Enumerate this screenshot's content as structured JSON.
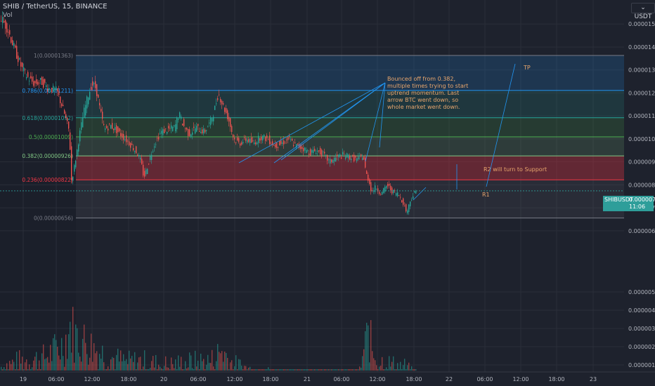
{
  "header": {
    "symbol": "SHIB / TetherUS, 15, BINANCE",
    "volume_label": "Vol",
    "currency": "USDT",
    "currency_icon": "chevron-down-icon"
  },
  "price_tag": {
    "symbol": "SHIBUSDT",
    "price": "0.00000774",
    "countdown": "11:06",
    "color": "#2e9e9a"
  },
  "colors": {
    "background": "#1e222d",
    "grid": "#2a2e39",
    "up": "#26a69a",
    "down": "#ef5350",
    "annotation": "#e8a66d",
    "drawing": "#2196f3"
  },
  "chart_data": {
    "type": "candlestick",
    "x_ticks": [
      "19",
      "06:00",
      "12:00",
      "18:00",
      "20",
      "06:00",
      "12:00",
      "18:00",
      "21",
      "06:00",
      "12:00",
      "18:00",
      "22",
      "06:00",
      "12:00",
      "18:00",
      "23"
    ],
    "price_ticks": [
      "0.00001500",
      "0.00001400",
      "0.00001300",
      "0.00001200",
      "0.00001100",
      "0.00001000",
      "0.00000900",
      "0.00000800",
      "0.00000700",
      "0.00000600"
    ],
    "volume_ticks": [
      "0.00000500",
      "0.00000400",
      "0.00000300",
      "0.00000200",
      "0.00000100"
    ],
    "price_range": [
      5.6e-06,
      1.58e-05
    ],
    "fib_levels": [
      {
        "ratio": 1,
        "label": "1(0.00001363)",
        "price": 1.363e-05,
        "color": "#787b86"
      },
      {
        "ratio": 0.786,
        "label": "0.786(0.00001211)",
        "price": 1.211e-05,
        "color": "#2196f3"
      },
      {
        "ratio": 0.618,
        "label": "0.618(0.00001092)",
        "price": 1.092e-05,
        "color": "#26a69a"
      },
      {
        "ratio": 0.5,
        "label": "0.5(0.00001009)",
        "price": 1.009e-05,
        "color": "#4caf50"
      },
      {
        "ratio": 0.382,
        "label": "0.382(0.00000926)",
        "price": 9.26e-06,
        "color": "#81c784"
      },
      {
        "ratio": 0.236,
        "label": "0.236(0.00000822)",
        "price": 8.22e-06,
        "color": "#f23645"
      },
      {
        "ratio": 0,
        "label": "0(0.00000656)",
        "price": 6.56e-06,
        "color": "#787b86"
      }
    ],
    "price_path": [
      [
        0,
        1.54e-05
      ],
      [
        12,
        1.48e-05
      ],
      [
        22,
        1.39e-05
      ],
      [
        32,
        1.31e-05
      ],
      [
        40,
        1.27e-05
      ],
      [
        50,
        1.24e-05
      ],
      [
        60,
        1.25e-05
      ],
      [
        70,
        1.22e-05
      ],
      [
        82,
        1.21e-05
      ],
      [
        92,
        1.12e-05
      ],
      [
        100,
        1.03e-05
      ],
      [
        103,
        8.2e-06
      ],
      [
        106,
        8.6e-06
      ],
      [
        110,
        9.3e-06
      ],
      [
        114,
        1.01e-05
      ],
      [
        120,
        1.11e-05
      ],
      [
        126,
        1.18e-05
      ],
      [
        132,
        1.24e-05
      ],
      [
        138,
        1.22e-05
      ],
      [
        144,
        1.12e-05
      ],
      [
        150,
        1.04e-05
      ],
      [
        158,
        1.06e-05
      ],
      [
        166,
        1.04e-05
      ],
      [
        176,
        1.01e-05
      ],
      [
        186,
        9.8e-06
      ],
      [
        196,
        9.4e-06
      ],
      [
        202,
        9e-06
      ],
      [
        206,
        8.3e-06
      ],
      [
        212,
        8.9e-06
      ],
      [
        220,
        9.7e-06
      ],
      [
        230,
        1.03e-05
      ],
      [
        240,
        1.04e-05
      ],
      [
        250,
        1.05e-05
      ],
      [
        256,
        1.11e-05
      ],
      [
        262,
        1.06e-05
      ],
      [
        270,
        1.02e-05
      ],
      [
        280,
        1.05e-05
      ],
      [
        292,
        1.03e-05
      ],
      [
        300,
        1.07e-05
      ],
      [
        306,
        1.12e-05
      ],
      [
        312,
        1.2e-05
      ],
      [
        318,
        1.15e-05
      ],
      [
        326,
        1.09e-05
      ],
      [
        334,
        1e-05
      ],
      [
        342,
        9.8e-06
      ],
      [
        352,
        1e-05
      ],
      [
        362,
        9.8e-06
      ],
      [
        372,
        1.01e-05
      ],
      [
        382,
        1e-05
      ],
      [
        392,
        9.7e-06
      ],
      [
        402,
        9.8e-06
      ],
      [
        412,
        1e-05
      ],
      [
        422,
        9.7e-06
      ],
      [
        432,
        9.6e-06
      ],
      [
        442,
        9.4e-06
      ],
      [
        452,
        9.5e-06
      ],
      [
        462,
        9.3e-06
      ],
      [
        470,
        9e-06
      ],
      [
        480,
        9.2e-06
      ],
      [
        490,
        9.3e-06
      ],
      [
        500,
        9.2e-06
      ],
      [
        510,
        9.1e-06
      ],
      [
        518,
        9.3e-06
      ],
      [
        522,
        8.5e-06
      ],
      [
        526,
        8.2e-06
      ],
      [
        530,
        7.7e-06
      ],
      [
        536,
        7.9e-06
      ],
      [
        544,
        7.6e-06
      ],
      [
        552,
        8e-06
      ],
      [
        560,
        7.7e-06
      ],
      [
        568,
        7.6e-06
      ],
      [
        574,
        7.3e-06
      ],
      [
        580,
        6.8e-06
      ],
      [
        586,
        7.4e-06
      ],
      [
        592,
        7.7e-06
      ]
    ],
    "volume_profile": [
      [
        0,
        1.2e-06
      ],
      [
        30,
        1.6e-06
      ],
      [
        60,
        1.8e-06
      ],
      [
        90,
        2.8e-06
      ],
      [
        100,
        4.2e-06
      ],
      [
        105,
        3.5e-06
      ],
      [
        120,
        3e-06
      ],
      [
        140,
        2.3e-06
      ],
      [
        160,
        1.8e-06
      ],
      [
        180,
        1.5e-06
      ],
      [
        200,
        1.6e-06
      ],
      [
        220,
        1.4e-06
      ],
      [
        240,
        1.3e-06
      ],
      [
        270,
        1.5e-06
      ],
      [
        300,
        1.6e-06
      ],
      [
        315,
        2.4e-06
      ],
      [
        330,
        1.4e-06
      ],
      [
        360,
        9e-07
      ],
      [
        400,
        7e-07
      ],
      [
        440,
        6e-07
      ],
      [
        480,
        5e-07
      ],
      [
        510,
        7e-07
      ],
      [
        520,
        3e-06
      ],
      [
        524,
        3.6e-06
      ],
      [
        530,
        2.2e-06
      ],
      [
        540,
        1.6e-06
      ],
      [
        560,
        1.3e-06
      ],
      [
        575,
        1.2e-06
      ],
      [
        592,
        5e-07
      ]
    ],
    "annotations": [
      {
        "name": "note-bounced-off",
        "lines": [
          "Bounced off from 0.382,",
          "multiple times trying to start",
          "uptrend momentum. Last",
          "arrow BTC went down, so",
          "whole market went down."
        ]
      },
      {
        "name": "label-r2",
        "text": "R2 will turn to Support"
      },
      {
        "name": "label-r1",
        "text": "R1"
      },
      {
        "name": "label-tp",
        "text": "TP"
      }
    ]
  }
}
